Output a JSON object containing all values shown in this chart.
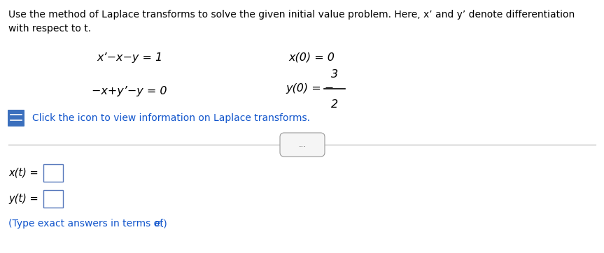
{
  "bg_color": "#ffffff",
  "header_line1": "Use the method of Laplace transforms to solve the given initial value problem. Here, x’ and y’ denote differentiation",
  "header_line2": "with respect to t.",
  "eq1": "x’−x−y = 1",
  "eq2": "−x+y’−y = 0",
  "ic1": "x(0) = 0",
  "ic2_prefix": "y(0) = −",
  "ic2_num": "3",
  "ic2_den": "2",
  "click_text": "Click the icon to view information on Laplace transforms.",
  "xt_label": "x(t) =",
  "yt_label": "y(t) =",
  "hint_part1": "(Type exact answers in terms of ",
  "hint_e": "e",
  "hint_part2": ".)",
  "header_color": "#000000",
  "eq_color": "#000000",
  "click_color": "#1155cc",
  "hint_color": "#1155cc",
  "label_color": "#000000",
  "divider_color": "#b0b0b0",
  "icon_color": "#3b6fbd",
  "box_edge_color": "#5577bb"
}
